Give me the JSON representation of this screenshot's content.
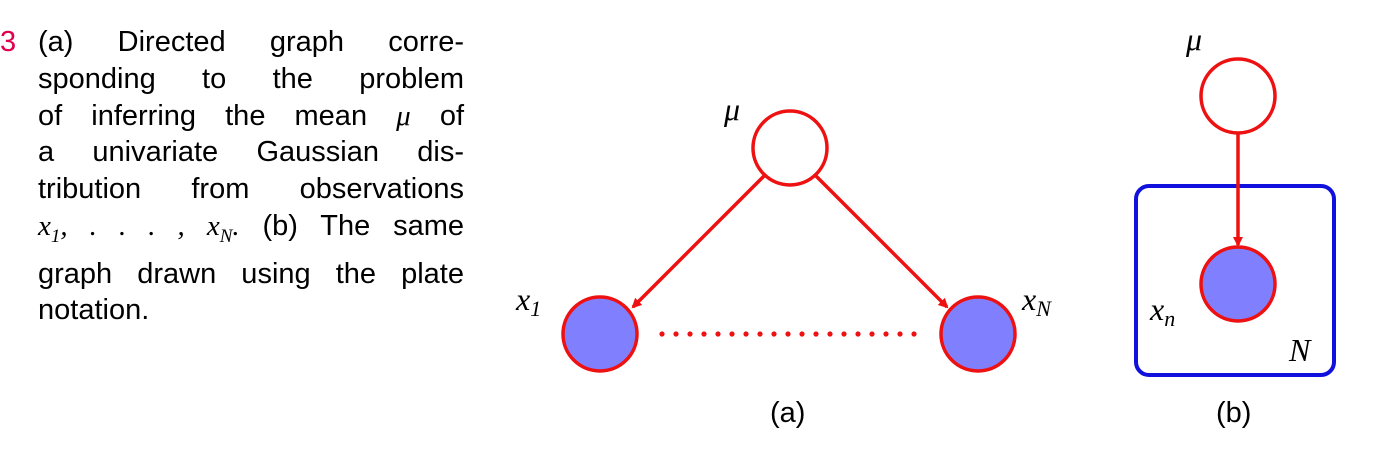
{
  "figure_number": "3",
  "caption_lines": [
    "(a) Directed graph corre-",
    "sponding to the problem",
    "of inferring the mean",
    "a univariate Gaussian dis-",
    "tribution from observations",
    "(b) The same",
    "graph drawn using the plate",
    "notation."
  ],
  "caption_math": {
    "mu": "μ",
    "of": "of",
    "x_seq": "x",
    "x_seq_sub1": "1",
    "x_seq_mid": ", . . . , x",
    "x_seq_subN": "N",
    "x_seq_end": "."
  },
  "panel_a": {
    "caption": "(a)",
    "top_node_label": "μ",
    "left_node_label": "x",
    "left_node_sub": "1",
    "right_node_label": "x",
    "right_node_sub": "N"
  },
  "panel_b": {
    "caption": "(b)",
    "top_node_label": "μ",
    "obs_node_label": "x",
    "obs_node_sub": "n",
    "plate_label": "N"
  },
  "colors": {
    "edge": "#ee1111",
    "observed_fill": "#8080ff",
    "plate": "#1111dd",
    "fig_num": "#e0004d"
  }
}
